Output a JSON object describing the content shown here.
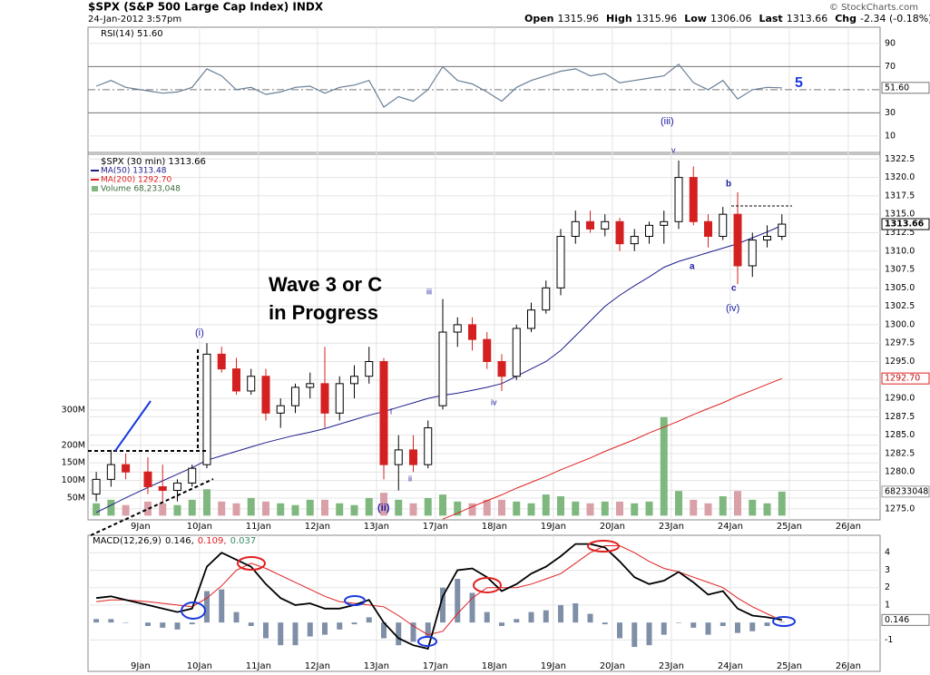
{
  "chart_data": {
    "type": "candlestick",
    "title": "$SPX (S&P 500 Large Cap Index) INDX",
    "subtitle": "24-Jan-2012 3:57pm",
    "source": "© StockCharts.com",
    "header": [
      {
        "label": "Open",
        "value": "1315.96"
      },
      {
        "label": "High",
        "value": "1315.96"
      },
      {
        "label": "Low",
        "value": "1306.06"
      },
      {
        "label": "Last",
        "value": "1313.66"
      },
      {
        "label": "Chg",
        "value": "-2.34 (-0.18%)"
      }
    ],
    "price_label": "$SPX (30 min) 1313.66",
    "xlim": [
      -0.89,
      12.54
    ],
    "xticks": [
      {
        "value": 0,
        "label": "9Jan"
      },
      {
        "value": 1,
        "label": "10Jan"
      },
      {
        "value": 2,
        "label": "11Jan"
      },
      {
        "value": 3,
        "label": "12Jan"
      },
      {
        "value": 4,
        "label": "13Jan"
      },
      {
        "value": 5,
        "label": "17Jan"
      },
      {
        "value": 6,
        "label": "18Jan"
      },
      {
        "value": 7,
        "label": "19Jan"
      },
      {
        "value": 8,
        "label": "20Jan"
      },
      {
        "value": 9,
        "label": "23Jan"
      },
      {
        "value": 10,
        "label": "24Jan"
      },
      {
        "value": 11,
        "label": "25Jan"
      },
      {
        "value": 12,
        "label": "26Jan"
      }
    ],
    "x": [
      -0.75,
      -0.5,
      -0.25,
      0.125,
      0.375,
      0.625,
      0.875,
      1.125,
      1.375,
      1.625,
      1.875,
      2.125,
      2.375,
      2.625,
      2.875,
      3.125,
      3.375,
      3.625,
      3.875,
      4.125,
      4.375,
      4.625,
      4.875,
      5.125,
      5.375,
      5.625,
      5.875,
      6.125,
      6.375,
      6.625,
      6.875,
      7.125,
      7.375,
      7.625,
      7.875,
      8.125,
      8.375,
      8.625,
      8.875,
      9.125,
      9.375,
      9.625,
      9.875,
      10.125,
      10.375,
      10.625,
      10.875
    ],
    "open": [
      1277,
      1279,
      1281,
      1280,
      1278,
      1277.5,
      1278.5,
      1281,
      1296,
      1294,
      1291,
      1293,
      1288,
      1289,
      1291.5,
      1292,
      1288,
      1292,
      1293,
      1295,
      1281,
      1283,
      1281,
      1289,
      1299,
      1300,
      1298,
      1295,
      1293,
      1299.5,
      1302,
      1305,
      1312,
      1314,
      1313,
      1314,
      1311,
      1312,
      1313.5,
      1314,
      1320,
      1314,
      1312,
      1315,
      1308,
      1311.5,
      1312
    ],
    "high": [
      1280,
      1283,
      1282.5,
      1282,
      1281,
      1279,
      1281,
      1297.5,
      1297,
      1295.5,
      1294,
      1294,
      1290,
      1292,
      1293.5,
      1297,
      1293,
      1294.5,
      1297,
      1295.5,
      1285,
      1285,
      1287,
      1303.5,
      1301,
      1301,
      1299,
      1296,
      1300,
      1303,
      1306,
      1313,
      1315.5,
      1315.5,
      1315,
      1314.5,
      1313,
      1314,
      1315.5,
      1322.3,
      1321.5,
      1315,
      1316,
      1318,
      1312.5,
      1313.5,
      1315
    ],
    "low": [
      1276,
      1278,
      1279,
      1277,
      1276,
      1276,
      1278,
      1280.5,
      1293.5,
      1290.5,
      1290.5,
      1287,
      1286,
      1288,
      1290,
      1286,
      1287,
      1290,
      1292,
      1279,
      1277.5,
      1280,
      1280.5,
      1288.5,
      1297,
      1296.5,
      1294,
      1291,
      1292.5,
      1299,
      1301.5,
      1304,
      1311,
      1312.5,
      1312,
      1310,
      1310,
      1311,
      1311,
      1313,
      1313.5,
      1310.5,
      1311.5,
      1305.5,
      1306.5,
      1310.5,
      1311.5
    ],
    "close": [
      1279,
      1281,
      1280,
      1278,
      1277.5,
      1278.5,
      1280.5,
      1296,
      1294,
      1291,
      1293,
      1288,
      1289,
      1291.5,
      1292,
      1288,
      1292,
      1293,
      1295,
      1281,
      1283,
      1281,
      1286,
      1299,
      1300,
      1298,
      1295,
      1293,
      1299.5,
      1302,
      1305,
      1312,
      1314,
      1313,
      1314,
      1311,
      1312,
      1313.5,
      1314,
      1320,
      1314,
      1312,
      1315,
      1308,
      1311.5,
      1312,
      1313.66
    ],
    "up_color": "#000000",
    "down_color": "#d42020",
    "ylim": [
      1273.5,
      1323.4
    ],
    "yticks": [
      {
        "value": 1275,
        "label": "1275.0"
      },
      {
        "value": 1277.5,
        "label": "1277.5"
      },
      {
        "value": 1280,
        "label": "1280.0"
      },
      {
        "value": 1282.5,
        "label": "1282.5"
      },
      {
        "value": 1285,
        "label": "1285.0"
      },
      {
        "value": 1287.5,
        "label": "1287.5"
      },
      {
        "value": 1290,
        "label": "1290.0"
      },
      {
        "value": 1292.5,
        "label": "1292.5"
      },
      {
        "value": 1295,
        "label": "1295.0"
      },
      {
        "value": 1297.5,
        "label": "1297.5"
      },
      {
        "value": 1300,
        "label": "1300.0"
      },
      {
        "value": 1302.5,
        "label": "1302.5"
      },
      {
        "value": 1305,
        "label": "1305.0"
      },
      {
        "value": 1307.5,
        "label": "1307.5"
      },
      {
        "value": 1310,
        "label": "1310.0"
      },
      {
        "value": 1312.5,
        "label": "1312.5"
      },
      {
        "value": 1315,
        "label": "1315.0"
      },
      {
        "value": 1317.5,
        "label": "1317.5"
      },
      {
        "value": 1320,
        "label": "1320.0"
      },
      {
        "value": 1322.5,
        "label": "1322.5"
      }
    ],
    "grid": true,
    "last_box": {
      "value": 1313.66,
      "label": "1313.66"
    },
    "series": [
      {
        "name": "MA(50) 1313.48",
        "color": "#1c1c8c",
        "values": [
          1274.5,
          1275.5,
          1276.5,
          1277.9,
          1278.8,
          1279.7,
          1280.6,
          1281.6,
          1282.2,
          1282.8,
          1283.4,
          1284.0,
          1284.5,
          1285.0,
          1285.4,
          1285.9,
          1286.5,
          1287.1,
          1287.7,
          1288.2,
          1288.8,
          1289.4,
          1290.0,
          1290.4,
          1290.7,
          1291.1,
          1291.5,
          1292.0,
          1293.0,
          1294.0,
          1295.0,
          1296.5,
          1298.5,
          1300.5,
          1302.5,
          1304.0,
          1305.3,
          1306.5,
          1307.8,
          1308.6,
          1309.2,
          1309.8,
          1310.4,
          1311.0,
          1311.8,
          1312.6,
          1313.48
        ]
      },
      {
        "name": "MA(200) 1292.70",
        "color": "#e02020",
        "box": {
          "value": 1292.7,
          "label": "1292.70"
        },
        "values": [
          null,
          null,
          null,
          null,
          null,
          null,
          null,
          null,
          null,
          null,
          null,
          null,
          null,
          null,
          null,
          null,
          null,
          null,
          null,
          null,
          null,
          null,
          null,
          1273.6,
          1274.4,
          1275.3,
          1276.1,
          1276.9,
          1277.8,
          1278.6,
          1279.4,
          1280.3,
          1281.1,
          1281.9,
          1282.8,
          1283.6,
          1284.4,
          1285.3,
          1286.1,
          1286.9,
          1287.8,
          1288.6,
          1289.4,
          1290.3,
          1291.1,
          1291.9,
          1292.7
        ]
      }
    ],
    "volume": {
      "name": "Volume 68,233,048",
      "up_color": "#7fb87f",
      "down_color": "#d9a0a8",
      "values": [
        35,
        45,
        30,
        40,
        35,
        30,
        45,
        75,
        40,
        35,
        50,
        40,
        35,
        30,
        45,
        45,
        35,
        30,
        50,
        65,
        45,
        35,
        50,
        60,
        40,
        35,
        45,
        45,
        40,
        35,
        60,
        55,
        40,
        35,
        40,
        40,
        35,
        40,
        280,
        70,
        45,
        35,
        55,
        70,
        45,
        35,
        68.233048
      ],
      "ylim": [
        -12,
        1032
      ],
      "yticks": [
        {
          "value": 50,
          "label": "50M"
        },
        {
          "value": 100,
          "label": "100M"
        },
        {
          "value": 150,
          "label": "150M"
        },
        {
          "value": 200,
          "label": "200M"
        },
        {
          "value": 300,
          "label": "300M"
        }
      ],
      "box": {
        "value": 68.233048,
        "label": "68233048"
      }
    },
    "rsi": {
      "name": "RSI(14) 51.60",
      "color": "#6a7f96",
      "values": [
        53,
        58,
        52,
        49,
        47,
        48,
        52,
        68,
        62,
        50,
        52,
        46,
        48,
        52,
        53,
        47,
        52,
        54,
        58,
        35,
        44,
        40,
        50,
        70,
        58,
        55,
        48,
        40,
        52,
        58,
        62,
        66,
        68,
        62,
        64,
        56,
        58,
        60,
        62,
        72,
        56,
        50,
        58,
        42,
        50,
        52,
        51.6
      ],
      "ylim": [
        -5.8,
        104
      ],
      "yticks": [
        10,
        30,
        70,
        90
      ],
      "midline": 50,
      "box": {
        "value": 51.6,
        "label": "51.60"
      }
    },
    "macd": {
      "name": "MACD(12,26,9)",
      "values_label": "0.146,",
      "signal_label": "0.109,",
      "hist_label": "0.037",
      "color": "#000000",
      "signal_color": "#e02020",
      "hist_color": "#7f8fa8",
      "values": [
        1.4,
        1.5,
        1.3,
        1.0,
        0.8,
        0.6,
        0.8,
        3.2,
        4.0,
        3.6,
        3.2,
        2.2,
        1.4,
        1.0,
        1.1,
        0.8,
        0.8,
        1.0,
        1.3,
        0.0,
        -0.9,
        -1.3,
        -1.5,
        1.5,
        3.0,
        3.1,
        2.6,
        1.8,
        2.2,
        2.8,
        3.2,
        3.8,
        4.5,
        4.5,
        4.3,
        3.5,
        2.6,
        2.2,
        2.4,
        2.9,
        2.3,
        1.6,
        1.8,
        0.8,
        0.4,
        0.3,
        0.146
      ],
      "signal": [
        1.2,
        1.3,
        1.3,
        1.2,
        1.1,
        1.0,
        0.9,
        1.4,
        2.1,
        3.0,
        3.4,
        3.1,
        2.7,
        2.3,
        1.9,
        1.5,
        1.2,
        1.1,
        1.0,
        0.9,
        0.4,
        -0.2,
        -0.7,
        -0.5,
        0.5,
        1.4,
        2.0,
        2.0,
        2.0,
        2.2,
        2.5,
        2.8,
        3.4,
        4.0,
        4.4,
        4.4,
        4.0,
        3.5,
        3.1,
        2.9,
        2.6,
        2.3,
        2.0,
        1.4,
        0.9,
        0.5,
        0.109
      ],
      "histogram": [
        0.2,
        0.2,
        0.0,
        -0.2,
        -0.3,
        -0.4,
        -0.1,
        1.8,
        1.9,
        0.6,
        -0.2,
        -0.9,
        -1.3,
        -1.3,
        -0.8,
        -0.7,
        -0.4,
        -0.1,
        0.3,
        -0.9,
        -1.3,
        -1.1,
        -0.8,
        2.0,
        2.5,
        1.7,
        0.6,
        -0.2,
        0.2,
        0.6,
        0.7,
        1.0,
        1.1,
        0.5,
        -0.1,
        -0.9,
        -1.4,
        -1.3,
        -0.7,
        0.0,
        -0.3,
        -0.7,
        -0.2,
        -0.6,
        -0.5,
        -0.2,
        0.037
      ],
      "ylim": [
        -2.8,
        5.0
      ],
      "yticks": [
        -1,
        1,
        2,
        3,
        4
      ],
      "box": {
        "value": 0.146,
        "label": "0.146"
      }
    },
    "annotations": [
      "Wave 3 or C",
      "in Progress",
      "(i)",
      "(ii)",
      "(iii)",
      "(iv)",
      "5",
      "i",
      "ii",
      "iii",
      "iv",
      "a",
      "b",
      "c",
      "v"
    ]
  }
}
